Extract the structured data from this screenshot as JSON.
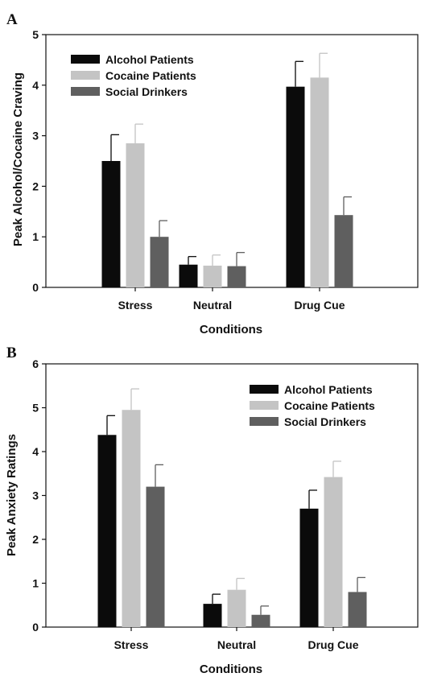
{
  "colors": {
    "alcohol": "#0b0b0b",
    "cocaine": "#c4c4c4",
    "social": "#5f5f5f",
    "axis": "#111111",
    "background": "#ffffff"
  },
  "chart_data": [
    {
      "panel_label": "A",
      "type": "bar",
      "categories": [
        "Stress",
        "Neutral",
        "Drug Cue"
      ],
      "xlabel": "Conditions",
      "ylabel": "Peak Alcohol/Cocaine Craving",
      "ylim": [
        0,
        5
      ],
      "yticks": [
        0,
        1,
        2,
        3,
        4,
        5
      ],
      "legend_position": "top-left",
      "error_bars": "upper",
      "series": [
        {
          "name": "Alcohol Patients",
          "color_key": "alcohol",
          "values": [
            2.5,
            0.45,
            3.97
          ],
          "errors": [
            0.52,
            0.16,
            0.5
          ]
        },
        {
          "name": "Cocaine Patients",
          "color_key": "cocaine",
          "values": [
            2.85,
            0.43,
            4.15
          ],
          "errors": [
            0.38,
            0.21,
            0.48
          ]
        },
        {
          "name": "Social Drinkers",
          "color_key": "social",
          "values": [
            1.0,
            0.42,
            1.43
          ],
          "errors": [
            0.32,
            0.27,
            0.36
          ]
        }
      ]
    },
    {
      "panel_label": "B",
      "type": "bar",
      "categories": [
        "Stress",
        "Neutral",
        "Drug Cue"
      ],
      "xlabel": "Conditions",
      "ylabel": "Peak Anxiety Ratings",
      "ylim": [
        0,
        6
      ],
      "yticks": [
        0,
        1,
        2,
        3,
        4,
        5,
        6
      ],
      "legend_position": "top-right",
      "error_bars": "upper",
      "series": [
        {
          "name": "Alcohol Patients",
          "color_key": "alcohol",
          "values": [
            4.38,
            0.53,
            2.7
          ],
          "errors": [
            0.44,
            0.22,
            0.42
          ]
        },
        {
          "name": "Cocaine Patients",
          "color_key": "cocaine",
          "values": [
            4.95,
            0.85,
            3.42
          ],
          "errors": [
            0.48,
            0.26,
            0.36
          ]
        },
        {
          "name": "Social Drinkers",
          "color_key": "social",
          "values": [
            3.2,
            0.28,
            0.8
          ],
          "errors": [
            0.5,
            0.2,
            0.33
          ]
        }
      ]
    }
  ]
}
